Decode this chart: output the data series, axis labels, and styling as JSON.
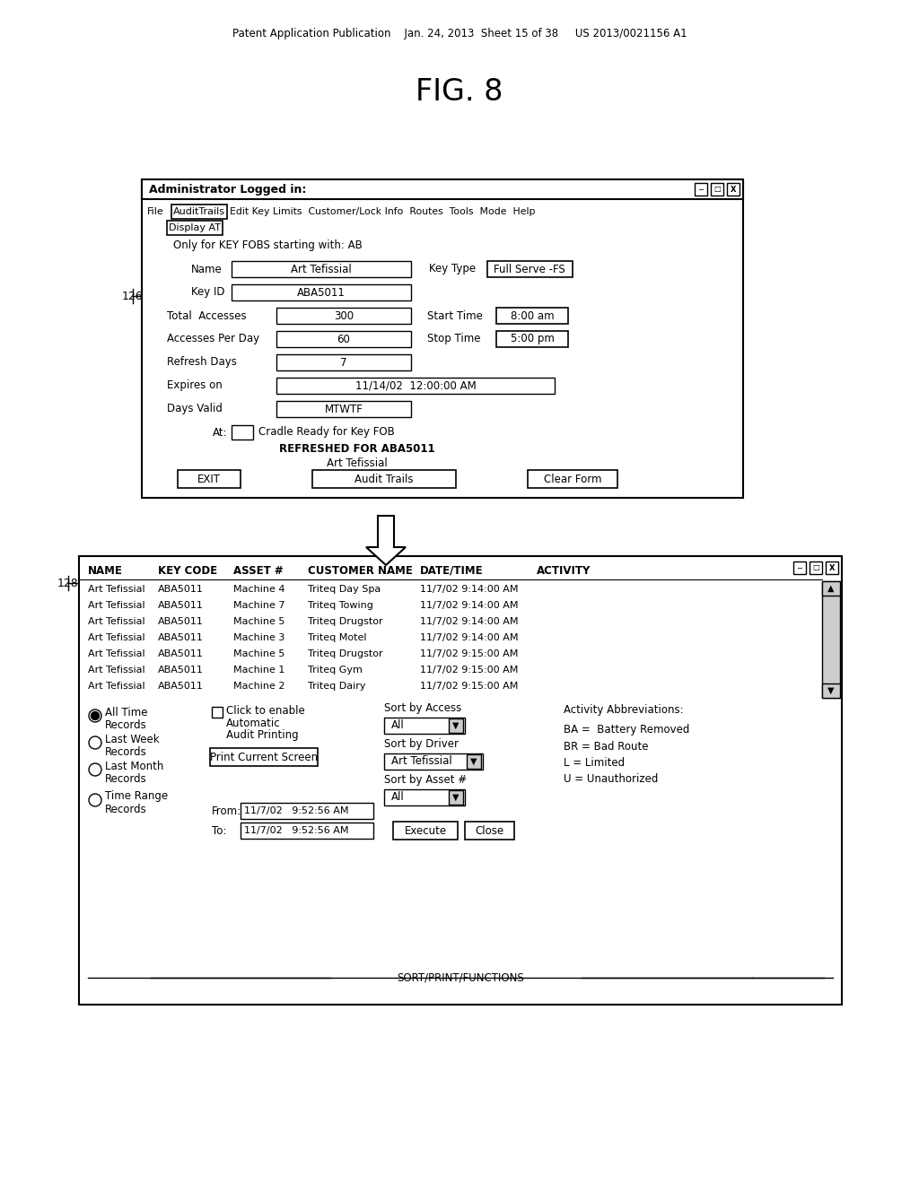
{
  "title": "FIG. 8",
  "header_text": "Patent Application Publication    Jan. 24, 2013  Sheet 15 of 38     US 2013/0021156 A1",
  "bg_color": "#ffffff",
  "top_dialog": {
    "title_bar": "Administrator Logged in:",
    "menu_file": "File",
    "menu_audit": "AuditTrails",
    "menu_rest": "Edit Key Limits  Customer/Lock Info  Routes  Tools  Mode  Help",
    "submenu": "Display AT",
    "subtitle": "Only for KEY FOBS starting with: AB",
    "at_text": "Cradle Ready for Key FOB",
    "refresh_text": "REFRESHED FOR ABA5011",
    "refresh_name": "Art Tefissial",
    "buttons": [
      "EXIT",
      "Audit Trails",
      "Clear Form"
    ]
  },
  "bottom_dialog": {
    "columns": [
      "NAME",
      "KEY CODE",
      "ASSET #",
      "CUSTOMER NAME",
      "DATE/TIME",
      "ACTIVITY"
    ],
    "rows": [
      [
        "Art Tefissial",
        "ABA5011",
        "Machine 4",
        "Triteq Day Spa",
        "11/7/02 9:14:00 AM",
        ""
      ],
      [
        "Art Tefissial",
        "ABA5011",
        "Machine 7",
        "Triteq Towing",
        "11/7/02 9:14:00 AM",
        ""
      ],
      [
        "Art Tefissial",
        "ABA5011",
        "Machine 5",
        "Triteq Drugstor",
        "11/7/02 9:14:00 AM",
        ""
      ],
      [
        "Art Tefissial",
        "ABA5011",
        "Machine 3",
        "Triteq Motel",
        "11/7/02 9:14:00 AM",
        ""
      ],
      [
        "Art Tefissial",
        "ABA5011",
        "Machine 5",
        "Triteq Drugstor",
        "11/7/02 9:15:00 AM",
        ""
      ],
      [
        "Art Tefissial",
        "ABA5011",
        "Machine 1",
        "Triteq Gym",
        "11/7/02 9:15:00 AM",
        ""
      ],
      [
        "Art Tefissial",
        "ABA5011",
        "Machine 2",
        "Triteq Dairy",
        "11/7/02 9:15:00 AM",
        ""
      ]
    ],
    "radio_options": [
      "All Time\nRecords",
      "Last Week\nRecords",
      "Last Month\nRecords",
      "Time Range\nRecords"
    ],
    "sort_access_label": "Sort by Access",
    "sort_access_value": "All",
    "sort_driver_label": "Sort by Driver",
    "sort_driver_value": "Art Tefissial",
    "sort_asset_label": "Sort by Asset #",
    "sort_asset_value": "All",
    "click_line1": "Click to enable",
    "click_line2": "Automatic",
    "click_line3": "Audit Printing",
    "print_btn": "Print Current Screen",
    "from_label": "From:",
    "from_value": "11/7/02   9:52:56 AM",
    "to_label": "To:",
    "to_value": "11/7/02   9:52:56 AM",
    "execute_btn": "Execute",
    "close_btn": "Close",
    "abbrev_title": "Activity Abbreviations:",
    "abbrev_lines": [
      "BA =  Battery Removed",
      "BR = Bad Route",
      "L = Limited",
      "U = Unauthorized"
    ],
    "footer": "SORT/PRINT/FUNCTIONS"
  }
}
